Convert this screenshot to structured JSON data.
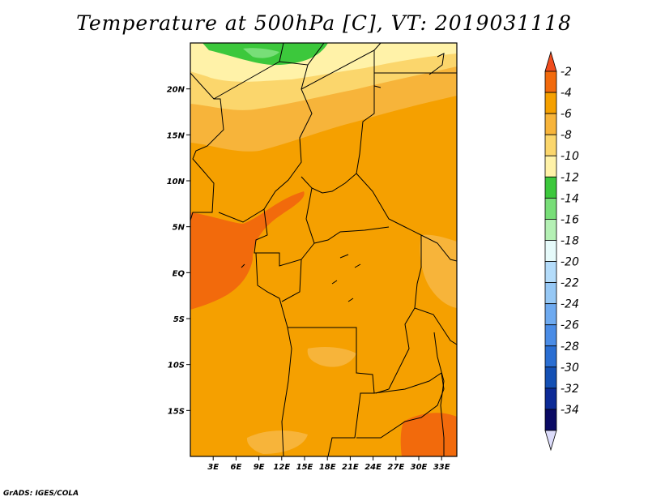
{
  "title": "Temperature at 500hPa [C], VT: 2019031118",
  "credit": "GrADS: IGES/COLA",
  "map": {
    "lon_range": [
      0,
      35
    ],
    "lat_range": [
      -20,
      25
    ],
    "lat_ticks": [
      {
        "value": 20,
        "label": "20N"
      },
      {
        "value": 15,
        "label": "15N"
      },
      {
        "value": 10,
        "label": "10N"
      },
      {
        "value": 5,
        "label": "5N"
      },
      {
        "value": 0,
        "label": "EQ"
      },
      {
        "value": -5,
        "label": "5S"
      },
      {
        "value": -10,
        "label": "10S"
      },
      {
        "value": -15,
        "label": "15S"
      }
    ],
    "lon_ticks": [
      {
        "value": 3,
        "label": "3E"
      },
      {
        "value": 6,
        "label": "6E"
      },
      {
        "value": 9,
        "label": "9E"
      },
      {
        "value": 12,
        "label": "12E"
      },
      {
        "value": 15,
        "label": "15E"
      },
      {
        "value": 18,
        "label": "18E"
      },
      {
        "value": 21,
        "label": "21E"
      },
      {
        "value": 24,
        "label": "24E"
      },
      {
        "value": 27,
        "label": "27E"
      },
      {
        "value": 30,
        "label": "30E"
      },
      {
        "value": 33,
        "label": "33E"
      }
    ]
  },
  "colorbar": {
    "labels": [
      "-2",
      "-4",
      "-6",
      "-8",
      "-10",
      "-12",
      "-14",
      "-16",
      "-18",
      "-20",
      "-22",
      "-24",
      "-26",
      "-28",
      "-30",
      "-32",
      "-34"
    ],
    "colors": [
      "#f04c1e",
      "#f26a0c",
      "#f5a000",
      "#f7b43a",
      "#fbd66c",
      "#fff2a8",
      "#3cc83c",
      "#78de78",
      "#b4f0b4",
      "#e6fafa",
      "#b4dcfa",
      "#96c8f5",
      "#6eaaf0",
      "#4a8ce6",
      "#2a6ed2",
      "#1450b4",
      "#0c2a96",
      "#0a0a64",
      "#dcdcfa"
    ]
  }
}
